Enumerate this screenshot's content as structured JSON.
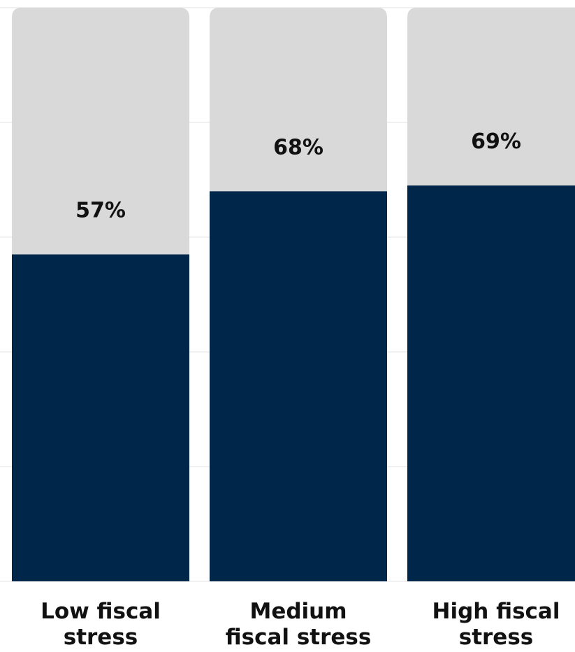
{
  "chart_data": {
    "type": "bar",
    "categories": [
      "Low fiscal stress",
      "Medium fiscal stress",
      "High fiscal stress"
    ],
    "category_lines": [
      [
        "Low fiscal",
        "stress"
      ],
      [
        "Medium",
        "fiscal stress"
      ],
      [
        "High fiscal",
        "stress"
      ]
    ],
    "values": [
      57,
      68,
      69
    ],
    "value_labels": [
      "57%",
      "68%",
      "69%"
    ],
    "ylim": [
      0,
      100
    ],
    "gridlines": [
      0,
      20,
      40,
      60,
      80,
      100
    ],
    "title": "",
    "xlabel": "",
    "ylabel": ""
  },
  "colors": {
    "filled": "#00264a",
    "remainder": "#d9d9d9",
    "grid": "#e3e3e3",
    "text": "#111111"
  }
}
